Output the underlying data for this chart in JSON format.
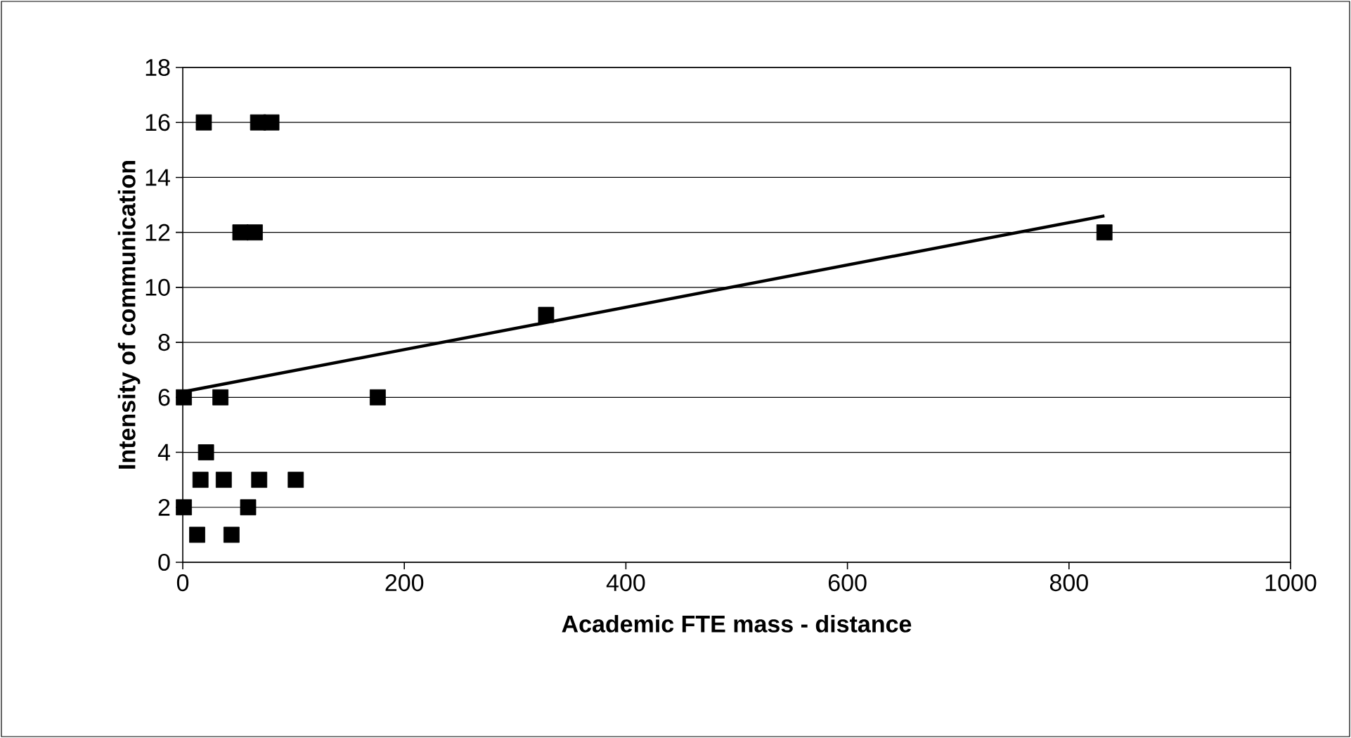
{
  "chart_data": {
    "type": "scatter",
    "xlabel": "Academic FTE mass - distance",
    "ylabel": "Intensity of communication",
    "xlim": [
      0,
      1000
    ],
    "ylim": [
      0,
      18
    ],
    "xticks": [
      0,
      200,
      400,
      600,
      800,
      1000
    ],
    "yticks": [
      0,
      2,
      4,
      6,
      8,
      10,
      12,
      14,
      16,
      18
    ],
    "grid": "y",
    "series": [
      {
        "marker": "square",
        "color": "#000000",
        "x": [
          19,
          68,
          80,
          52,
          65,
          1,
          34,
          176,
          21,
          16,
          37,
          69,
          102,
          1,
          59,
          13,
          44,
          328,
          832
        ],
        "values": [
          16,
          16,
          16,
          12,
          12,
          6,
          6,
          6,
          4,
          3,
          3,
          3,
          3,
          2,
          2,
          1,
          1,
          9,
          12
        ]
      },
      {
        "type": "line",
        "marker": "none",
        "line_style": "solid",
        "color": "#000000",
        "x": [
          0,
          832
        ],
        "values": [
          6.2,
          12.6
        ]
      }
    ]
  }
}
